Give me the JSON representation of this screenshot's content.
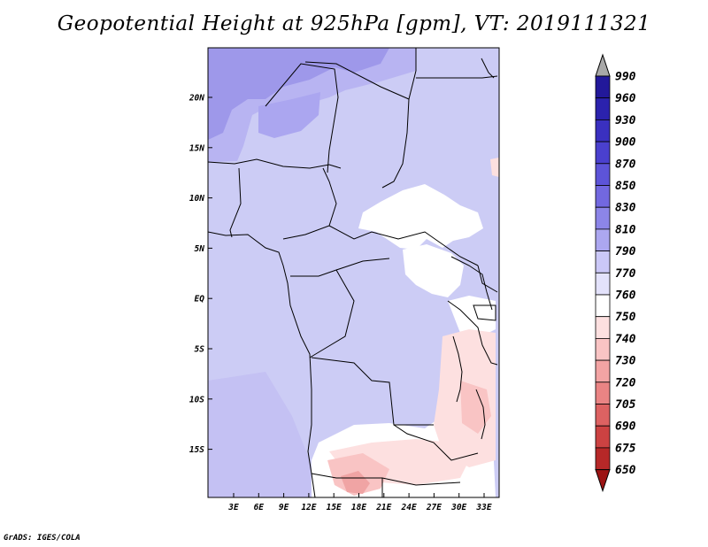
{
  "title": "Geopotential Height at 925hPa [gpm], VT: 2019111321",
  "footer": "GrADS: IGES/COLA",
  "lat_labels": [
    "20N",
    "15N",
    "10N",
    "5N",
    "EQ",
    "5S",
    "10S",
    "15S"
  ],
  "lon_labels": [
    "3E",
    "6E",
    "9E",
    "12E",
    "15E",
    "18E",
    "21E",
    "24E",
    "27E",
    "30E",
    "33E"
  ],
  "colorbar": {
    "labels": [
      "990",
      "960",
      "930",
      "900",
      "870",
      "850",
      "830",
      "810",
      "790",
      "770",
      "760",
      "750",
      "740",
      "730",
      "720",
      "705",
      "690",
      "675",
      "650"
    ],
    "colors": [
      "#1a0f82",
      "#22189a",
      "#2b22ad",
      "#3a30c0",
      "#4a40ce",
      "#5d54d8",
      "#7268e0",
      "#8c85e8",
      "#aca7f0",
      "#cbc8f7",
      "#e3e2fb",
      "#ffffff",
      "#fde0e0",
      "#f9c4c4",
      "#f3a4a4",
      "#ea8484",
      "#dd6262",
      "#cc4242",
      "#b62828",
      "#9c1414"
    ],
    "over_color": "#a8a8a8",
    "under_color": "#9c1414"
  },
  "map_fills": {
    "base": "#ccccf5",
    "north": "#b8b4f2",
    "far_north": "#9e98ea",
    "neutral": "#ffffff",
    "warm_light": "#fde0e0",
    "warm_mid": "#f9c4c4",
    "warm_deep": "#f0a4a4"
  }
}
